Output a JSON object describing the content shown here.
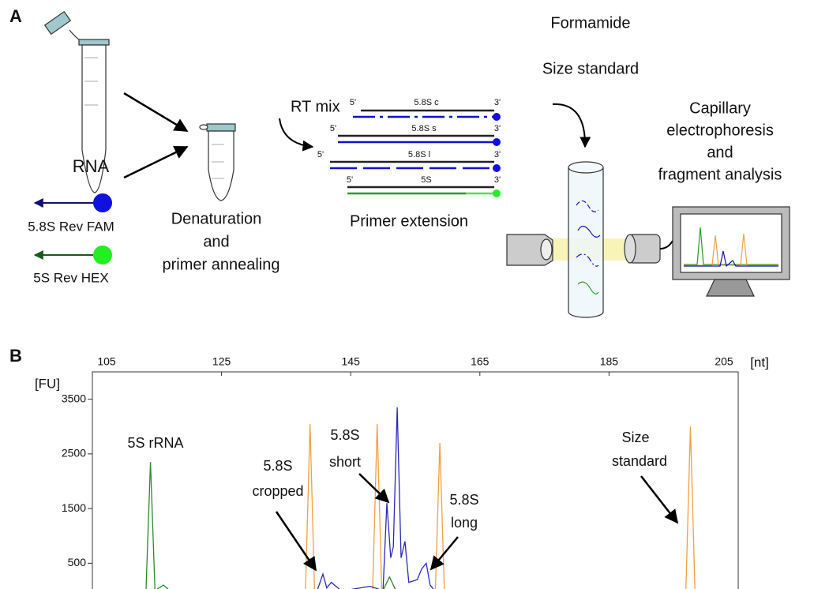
{
  "panel_a": {
    "panel_label": "A",
    "rna": "RNA",
    "primer_fam": "5.8S Rev FAM",
    "primer_hex": "5S Rev HEX",
    "denaturation": [
      "Denaturation",
      "and",
      "primer annealing"
    ],
    "rt_mix": "RT mix",
    "primer_extension": "Primer extension",
    "products": [
      {
        "five": "5'",
        "name": "5.8S c",
        "three": "3'"
      },
      {
        "five": "5'",
        "name": "5.8S s",
        "three": "3'"
      },
      {
        "five": "5'",
        "name": "5.8S l",
        "three": "3'"
      },
      {
        "five": "5'",
        "name": "5S",
        "three": "3'"
      }
    ],
    "formamide": [
      "Formamide",
      "Size standard"
    ],
    "capillary": [
      "Capillary",
      "electrophoresis",
      "and",
      "fragment analysis"
    ]
  },
  "chart_data": {
    "type": "line",
    "panel_label": "B",
    "x_label": "[nt]",
    "y_label": "[FU]",
    "xlim": [
      105,
      205
    ],
    "xticks": [
      105,
      125,
      145,
      165,
      185,
      205
    ],
    "ylim": [
      0,
      4000
    ],
    "yticks": [
      500,
      1500,
      2500,
      3500
    ],
    "series": [
      {
        "color": "#f0a040",
        "x": [
          105,
          138,
          138.7,
          139.4,
          148.4,
          149.1,
          149.8,
          158.1,
          158.8,
          159.5,
          196.9,
          197.6,
          198.3,
          205
        ],
        "values": [
          0,
          0,
          3050,
          0,
          0,
          3050,
          0,
          0,
          2700,
          0,
          0,
          3000,
          0,
          0
        ]
      },
      {
        "color": "#2a8a2a",
        "x": [
          105,
          113.3,
          114,
          114.7,
          116,
          117,
          150,
          151,
          152,
          205
        ],
        "values": [
          0,
          0,
          2350,
          0,
          100,
          0,
          0,
          250,
          0,
          0
        ]
      },
      {
        "color": "#2a2ab8",
        "x": [
          105,
          139.8,
          140.7,
          141.3,
          142,
          143.5,
          144,
          148,
          150,
          150.6,
          151.2,
          151.6,
          152.2,
          152.8,
          153.4,
          154,
          155.3,
          156,
          156.7,
          157.3,
          158,
          205
        ],
        "values": [
          0,
          0,
          300,
          50,
          150,
          0,
          0,
          80,
          0,
          1600,
          600,
          800,
          3350,
          600,
          900,
          150,
          200,
          400,
          500,
          100,
          0,
          0
        ]
      }
    ],
    "annotations": {
      "rrna_5s": [
        "5S rRNA"
      ],
      "cropped": [
        "5.8S",
        "cropped"
      ],
      "short": [
        "5.8S",
        "short"
      ],
      "long": [
        "5.8S",
        "long"
      ],
      "size_standard": [
        "Size",
        "standard"
      ]
    }
  }
}
